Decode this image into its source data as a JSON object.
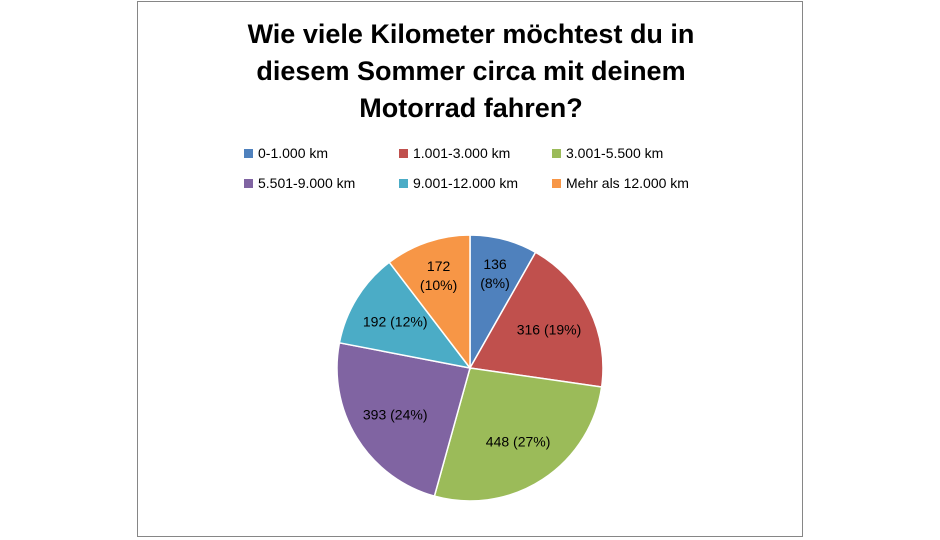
{
  "chart_data": {
    "type": "pie",
    "title_lines": [
      "Wie viele Kilometer möchtest du in",
      "diesem Sommer circa mit deinem",
      "Motorrad fahren?"
    ],
    "legend_position": "top",
    "categories": [
      "0-1.000 km",
      "1.001-3.000 km",
      "3.001-5.500 km",
      "5.501-9.000 km",
      "9.001-12.000 km",
      "Mehr als 12.000 km"
    ],
    "values": [
      136,
      316,
      448,
      393,
      192,
      172
    ],
    "percent_labels": [
      "8%",
      "19%",
      "27%",
      "24%",
      "12%",
      "10%"
    ],
    "colors": [
      "#4F81BD",
      "#C0504D",
      "#9BBB59",
      "#8064A2",
      "#4BACC6",
      "#F79646"
    ]
  }
}
